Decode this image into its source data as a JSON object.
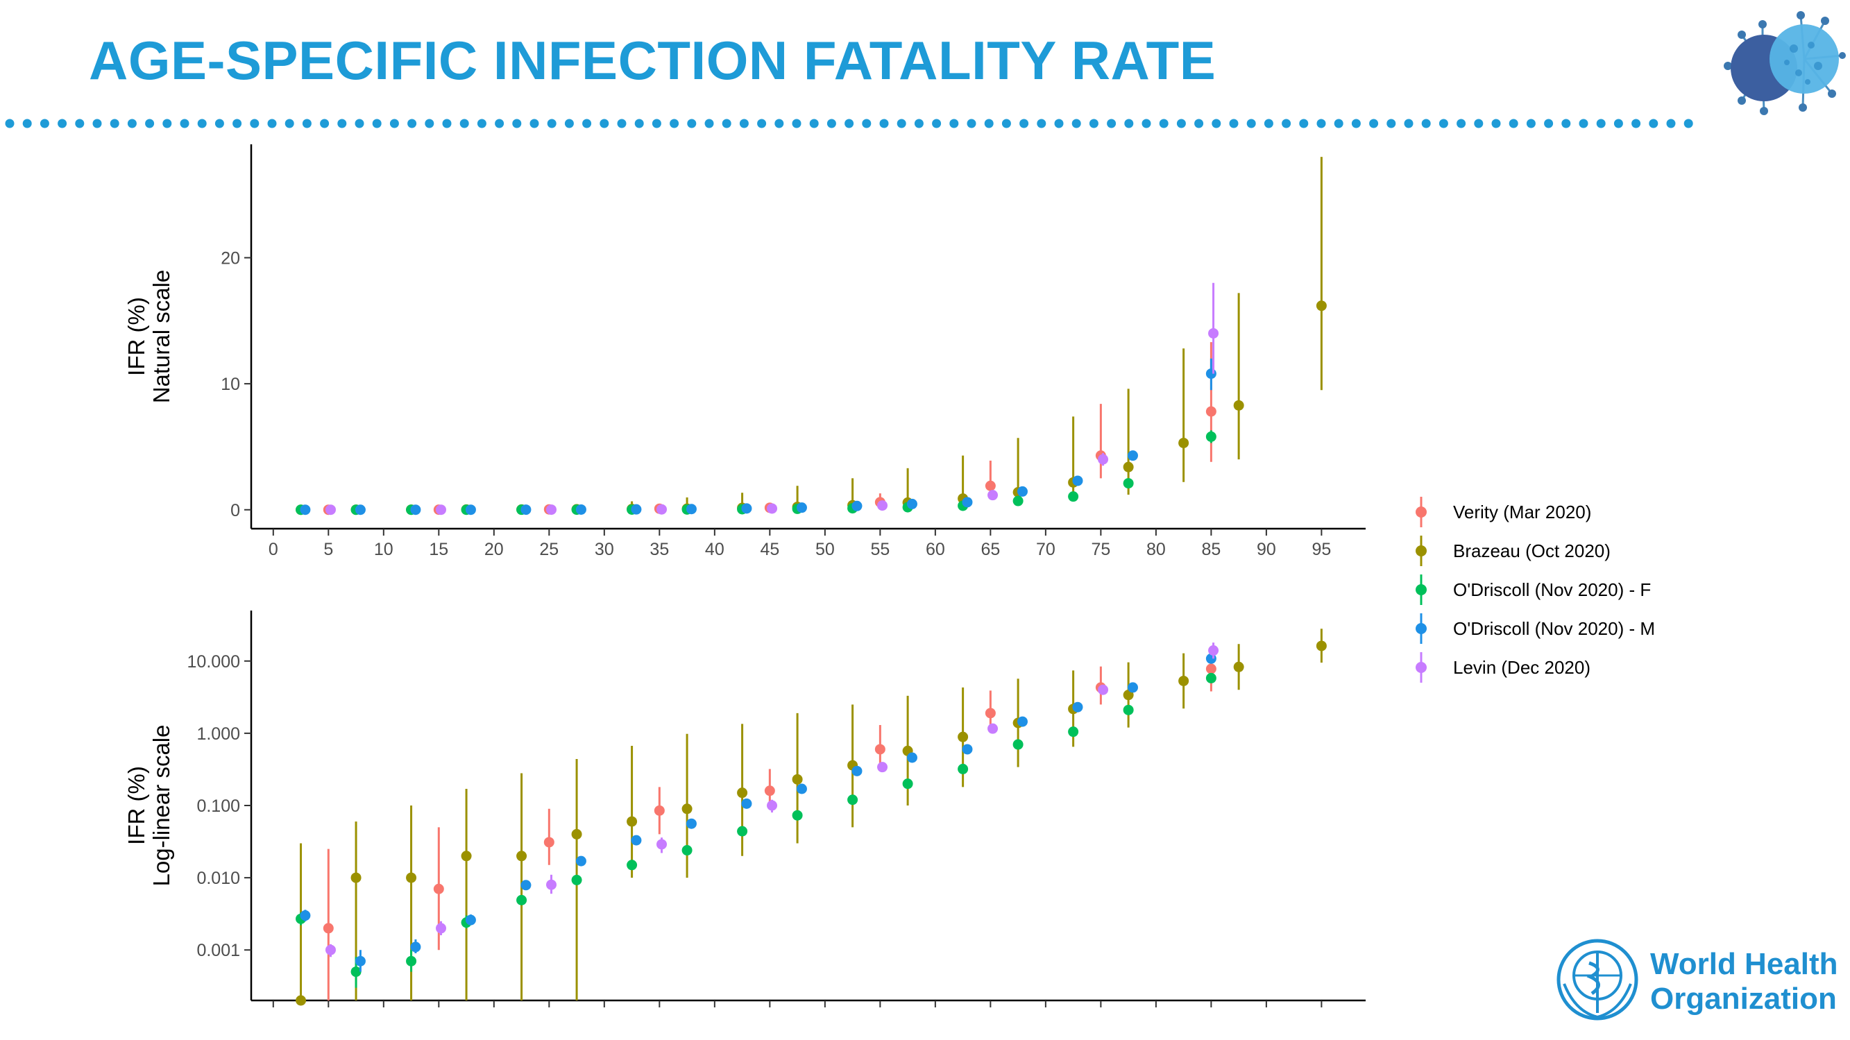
{
  "slide": {
    "title": "AGE-SPECIFIC INFECTION FATALITY RATE",
    "accent_color": "#1e9bd7",
    "virus_icon": "coronavirus-icon",
    "org_logo": {
      "icon": "who-emblem-icon",
      "line1": "World Health",
      "line2": "Organization",
      "color": "#1f8fd0"
    }
  },
  "chart_data": [
    {
      "type": "scatter",
      "subtype": "point-range",
      "ylabel_line1": "IFR (%)",
      "ylabel_line2": "Natural scale",
      "xlabel": "",
      "yscale": "linear",
      "xlim": [
        -2,
        99
      ],
      "ylim": [
        -1.5,
        29
      ],
      "x_ticks": [
        0,
        5,
        10,
        15,
        20,
        25,
        30,
        35,
        40,
        45,
        50,
        55,
        60,
        65,
        70,
        75,
        80,
        85,
        90,
        95
      ],
      "y_ticks": [
        0,
        10,
        20
      ],
      "y_tick_labels": [
        "0",
        "10",
        "20"
      ],
      "grid": false
    },
    {
      "type": "scatter",
      "subtype": "point-range",
      "ylabel_line1": "IFR (%)",
      "ylabel_line2": "Log-linear scale",
      "xlabel": "",
      "yscale": "log",
      "xlim": [
        -2,
        99
      ],
      "ylim": [
        0.0002,
        50
      ],
      "x_ticks": [
        0,
        5,
        10,
        15,
        20,
        25,
        30,
        35,
        40,
        45,
        50,
        55,
        60,
        65,
        70,
        75,
        80,
        85,
        90,
        95
      ],
      "y_ticks": [
        0.001,
        0.01,
        0.1,
        1,
        10
      ],
      "y_tick_labels": [
        "0.001",
        "0.010",
        "0.100",
        "1.000",
        "10.000"
      ],
      "grid": false
    }
  ],
  "series": [
    {
      "name": "Verity (Mar 2020)",
      "color": "#f8766d",
      "points": [
        {
          "x": 5,
          "y": 0.002,
          "lo": 0.0001,
          "hi": 0.025
        },
        {
          "x": 15,
          "y": 0.007,
          "lo": 0.001,
          "hi": 0.05
        },
        {
          "x": 25,
          "y": 0.031,
          "lo": 0.015,
          "hi": 0.09
        },
        {
          "x": 35,
          "y": 0.085,
          "lo": 0.04,
          "hi": 0.18
        },
        {
          "x": 45,
          "y": 0.16,
          "lo": 0.09,
          "hi": 0.32
        },
        {
          "x": 55,
          "y": 0.6,
          "lo": 0.34,
          "hi": 1.3
        },
        {
          "x": 65,
          "y": 1.9,
          "lo": 1.1,
          "hi": 3.9
        },
        {
          "x": 75,
          "y": 4.3,
          "lo": 2.5,
          "hi": 8.4
        },
        {
          "x": 85,
          "y": 7.8,
          "lo": 3.8,
          "hi": 13.3
        }
      ]
    },
    {
      "name": "Brazeau (Oct 2020)",
      "color": "#9b9100",
      "points": [
        {
          "x": 2.5,
          "y": 0.0002,
          "lo": 0.0001,
          "hi": 0.03
        },
        {
          "x": 7.5,
          "y": 0.01,
          "lo": 0.0001,
          "hi": 0.06
        },
        {
          "x": 12.5,
          "y": 0.01,
          "lo": 0.0001,
          "hi": 0.1
        },
        {
          "x": 17.5,
          "y": 0.02,
          "lo": 0.0001,
          "hi": 0.17
        },
        {
          "x": 22.5,
          "y": 0.02,
          "lo": 0.0001,
          "hi": 0.28
        },
        {
          "x": 27.5,
          "y": 0.04,
          "lo": 0.0001,
          "hi": 0.44
        },
        {
          "x": 32.5,
          "y": 0.06,
          "lo": 0.01,
          "hi": 0.67
        },
        {
          "x": 37.5,
          "y": 0.09,
          "lo": 0.01,
          "hi": 0.98
        },
        {
          "x": 42.5,
          "y": 0.15,
          "lo": 0.02,
          "hi": 1.35
        },
        {
          "x": 47.5,
          "y": 0.23,
          "lo": 0.03,
          "hi": 1.9
        },
        {
          "x": 52.5,
          "y": 0.36,
          "lo": 0.05,
          "hi": 2.5
        },
        {
          "x": 57.5,
          "y": 0.57,
          "lo": 0.1,
          "hi": 3.3
        },
        {
          "x": 62.5,
          "y": 0.89,
          "lo": 0.18,
          "hi": 4.3
        },
        {
          "x": 67.5,
          "y": 1.39,
          "lo": 0.34,
          "hi": 5.7
        },
        {
          "x": 72.5,
          "y": 2.17,
          "lo": 0.65,
          "hi": 7.4
        },
        {
          "x": 77.5,
          "y": 3.39,
          "lo": 1.2,
          "hi": 9.6
        },
        {
          "x": 82.5,
          "y": 5.3,
          "lo": 2.2,
          "hi": 12.8
        },
        {
          "x": 87.5,
          "y": 8.28,
          "lo": 4.0,
          "hi": 17.2
        },
        {
          "x": 95,
          "y": 16.19,
          "lo": 9.5,
          "hi": 28.0
        }
      ]
    },
    {
      "name": "O'Driscoll (Nov 2020) - F",
      "color": "#00c05a",
      "points": [
        {
          "x": 2.5,
          "y": 0.0027,
          "lo": 0.0022,
          "hi": 0.0033
        },
        {
          "x": 7.5,
          "y": 0.0005,
          "lo": 0.0003,
          "hi": 0.0008
        },
        {
          "x": 12.5,
          "y": 0.0007,
          "lo": 0.0005,
          "hi": 0.001
        },
        {
          "x": 17.5,
          "y": 0.0024,
          "lo": 0.002,
          "hi": 0.003
        },
        {
          "x": 22.5,
          "y": 0.0049,
          "lo": 0.0042,
          "hi": 0.0057
        },
        {
          "x": 27.5,
          "y": 0.0093,
          "lo": 0.0082,
          "hi": 0.0106
        },
        {
          "x": 32.5,
          "y": 0.015,
          "lo": 0.013,
          "hi": 0.017
        },
        {
          "x": 37.5,
          "y": 0.024,
          "lo": 0.021,
          "hi": 0.027
        },
        {
          "x": 42.5,
          "y": 0.044,
          "lo": 0.039,
          "hi": 0.049
        },
        {
          "x": 47.5,
          "y": 0.073,
          "lo": 0.065,
          "hi": 0.081
        },
        {
          "x": 52.5,
          "y": 0.12,
          "lo": 0.11,
          "hi": 0.13
        },
        {
          "x": 57.5,
          "y": 0.2,
          "lo": 0.18,
          "hi": 0.22
        },
        {
          "x": 62.5,
          "y": 0.32,
          "lo": 0.29,
          "hi": 0.35
        },
        {
          "x": 67.5,
          "y": 0.7,
          "lo": 0.63,
          "hi": 0.77
        },
        {
          "x": 72.5,
          "y": 1.05,
          "lo": 0.95,
          "hi": 1.15
        },
        {
          "x": 77.5,
          "y": 2.1,
          "lo": 1.9,
          "hi": 2.3
        },
        {
          "x": 85,
          "y": 5.8,
          "lo": 5.3,
          "hi": 6.3
        }
      ]
    },
    {
      "name": "O'Driscoll (Nov 2020) - M",
      "color": "#1e90e6",
      "points": [
        {
          "x": 2.9,
          "y": 0.003,
          "lo": 0.0025,
          "hi": 0.0036
        },
        {
          "x": 7.9,
          "y": 0.0007,
          "lo": 0.0005,
          "hi": 0.001
        },
        {
          "x": 12.9,
          "y": 0.0011,
          "lo": 0.0009,
          "hi": 0.0014
        },
        {
          "x": 17.9,
          "y": 0.0026,
          "lo": 0.0022,
          "hi": 0.0031
        },
        {
          "x": 22.9,
          "y": 0.0079,
          "lo": 0.007,
          "hi": 0.009
        },
        {
          "x": 27.9,
          "y": 0.017,
          "lo": 0.015,
          "hi": 0.019
        },
        {
          "x": 32.9,
          "y": 0.033,
          "lo": 0.03,
          "hi": 0.036
        },
        {
          "x": 37.9,
          "y": 0.056,
          "lo": 0.051,
          "hi": 0.061
        },
        {
          "x": 42.9,
          "y": 0.106,
          "lo": 0.097,
          "hi": 0.115
        },
        {
          "x": 47.9,
          "y": 0.17,
          "lo": 0.155,
          "hi": 0.185
        },
        {
          "x": 52.9,
          "y": 0.3,
          "lo": 0.28,
          "hi": 0.32
        },
        {
          "x": 57.9,
          "y": 0.46,
          "lo": 0.43,
          "hi": 0.49
        },
        {
          "x": 62.9,
          "y": 0.6,
          "lo": 0.56,
          "hi": 0.64
        },
        {
          "x": 67.9,
          "y": 1.45,
          "lo": 1.35,
          "hi": 1.55
        },
        {
          "x": 72.9,
          "y": 2.3,
          "lo": 2.15,
          "hi": 2.45
        },
        {
          "x": 77.9,
          "y": 4.3,
          "lo": 4.0,
          "hi": 4.6
        },
        {
          "x": 85,
          "y": 10.8,
          "lo": 9.5,
          "hi": 12.0
        }
      ]
    },
    {
      "name": "Levin (Dec 2020)",
      "color": "#c77cff",
      "points": [
        {
          "x": 5.2,
          "y": 0.001,
          "lo": 0.0008,
          "hi": 0.0012
        },
        {
          "x": 15.2,
          "y": 0.002,
          "lo": 0.0016,
          "hi": 0.0025
        },
        {
          "x": 25.2,
          "y": 0.008,
          "lo": 0.006,
          "hi": 0.011
        },
        {
          "x": 35.2,
          "y": 0.029,
          "lo": 0.022,
          "hi": 0.036
        },
        {
          "x": 45.2,
          "y": 0.1,
          "lo": 0.08,
          "hi": 0.12
        },
        {
          "x": 55.2,
          "y": 0.34,
          "lo": 0.3,
          "hi": 0.38
        },
        {
          "x": 65.2,
          "y": 1.16,
          "lo": 1.05,
          "hi": 1.27
        },
        {
          "x": 75.2,
          "y": 4.0,
          "lo": 3.5,
          "hi": 4.5
        },
        {
          "x": 85.2,
          "y": 14.0,
          "lo": 10.8,
          "hi": 18.0
        }
      ]
    }
  ]
}
